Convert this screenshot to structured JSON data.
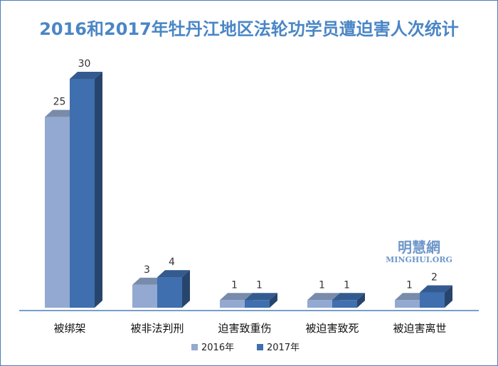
{
  "chart_data": {
    "type": "bar",
    "title": "2016和2017年牡丹江地区法轮功学员遭迫害人次统计",
    "categories": [
      "被绑架",
      "被非法判刑",
      "迫害致重伤",
      "被迫害致死",
      "被迫害离世"
    ],
    "series": [
      {
        "name": "2016年",
        "values": [
          25,
          3,
          1,
          1,
          1
        ],
        "color": "#93a9d1"
      },
      {
        "name": "2017年",
        "values": [
          30,
          4,
          1,
          1,
          2
        ],
        "color": "#3f6fae"
      }
    ],
    "ylim": [
      0,
      30
    ],
    "grid": false,
    "legend_position": "bottom",
    "three_d": true
  },
  "watermark": {
    "chinese": "明慧網",
    "english": "MINGHUI.ORG"
  }
}
